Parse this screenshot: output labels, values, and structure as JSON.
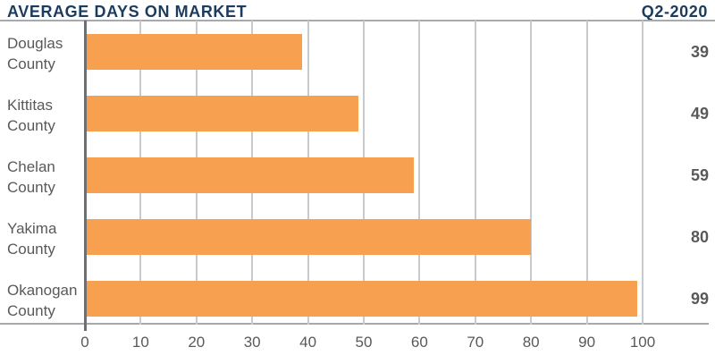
{
  "header": {
    "title": "AVERAGE DAYS ON MARKET",
    "period": "Q2-2020"
  },
  "chart_data": {
    "type": "bar",
    "orientation": "horizontal",
    "title": "AVERAGE DAYS ON MARKET",
    "subtitle": "Q2-2020",
    "categories": [
      "Douglas County",
      "Kittitas County",
      "Chelan County",
      "Yakima County",
      "Okanogan County"
    ],
    "values": [
      39,
      49,
      59,
      80,
      99
    ],
    "value_labels": [
      "39",
      "49",
      "59",
      "80",
      "99"
    ],
    "xlabel": "",
    "ylabel": "",
    "xlim": [
      0,
      100
    ],
    "x_ticks": [
      0,
      10,
      20,
      30,
      40,
      50,
      60,
      70,
      80,
      90,
      100
    ],
    "grid": true,
    "legend": false
  },
  "colors": {
    "title_navy": "#1B3C5E",
    "bar_orange": "#F7A050",
    "text_gray": "#58595B",
    "gridline_gray": "#C9CACC",
    "axis_gray": "#A7A9AC",
    "zero_line_gray": "#6D6E71"
  }
}
